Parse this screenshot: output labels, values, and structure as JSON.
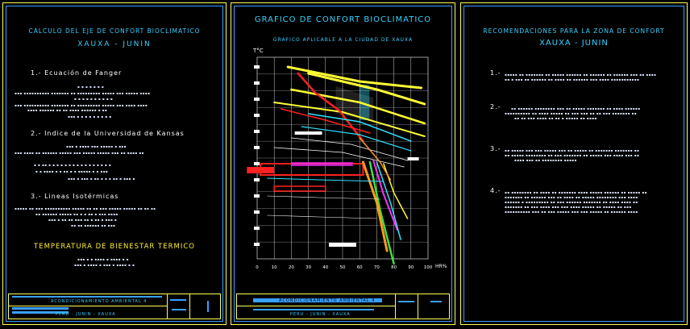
{
  "sheet1": {
    "title": "CALCULO DEL EJE DE CONFORT BIOCLIMATICO",
    "subtitle": "XAUXA - JUNIN",
    "section1": "1.- Ecuación de Fanger",
    "section2": "2.- Indice de la Universidad de Kansas",
    "section3": "3.- Lineas Isotérmicas",
    "section4": "TEMPERATURA DE BIENESTAR TERMICO",
    "titleblock_top": "ACONDICIONAMIENTO AMBIENTAL 4",
    "titleblock_bottom": "PERU - JUNIN - XAUXA"
  },
  "sheet2": {
    "title": "GRAFICO DE CONFORT BIOCLIMATICO",
    "subtitle": "GRAFICO APLICABLE A LA CIUDAD DE XAUXA",
    "titleblock_top": "ACONDICIONAMIENTO AMBIENTAL 4",
    "titleblock_bottom": "PERU - JUNIN - XAUXA"
  },
  "sheet3": {
    "title": "RECOMENDACIONES PARA LA ZONA DE CONFORT",
    "subtitle": "XAUXA - JUNIN",
    "items": [
      {
        "num": "1.-"
      },
      {
        "num": "2.-"
      },
      {
        "num": "3.-"
      },
      {
        "num": "4.-"
      }
    ]
  },
  "chart_data": {
    "type": "line",
    "ylabel": "T°C",
    "xlabel": "HR%",
    "x_ticks": [
      "0",
      "10",
      "20",
      "30",
      "40",
      "50",
      "60",
      "70",
      "80",
      "90",
      "100"
    ],
    "xlim": [
      0,
      100
    ],
    "grid": true,
    "colors": {
      "yellow": "#ffff33",
      "red": "#ff2020",
      "cyan": "#33e0ff",
      "green": "#40e040",
      "orange": "#ff9a20",
      "magenta": "#ff30ff",
      "white": "#ffffff"
    }
  }
}
